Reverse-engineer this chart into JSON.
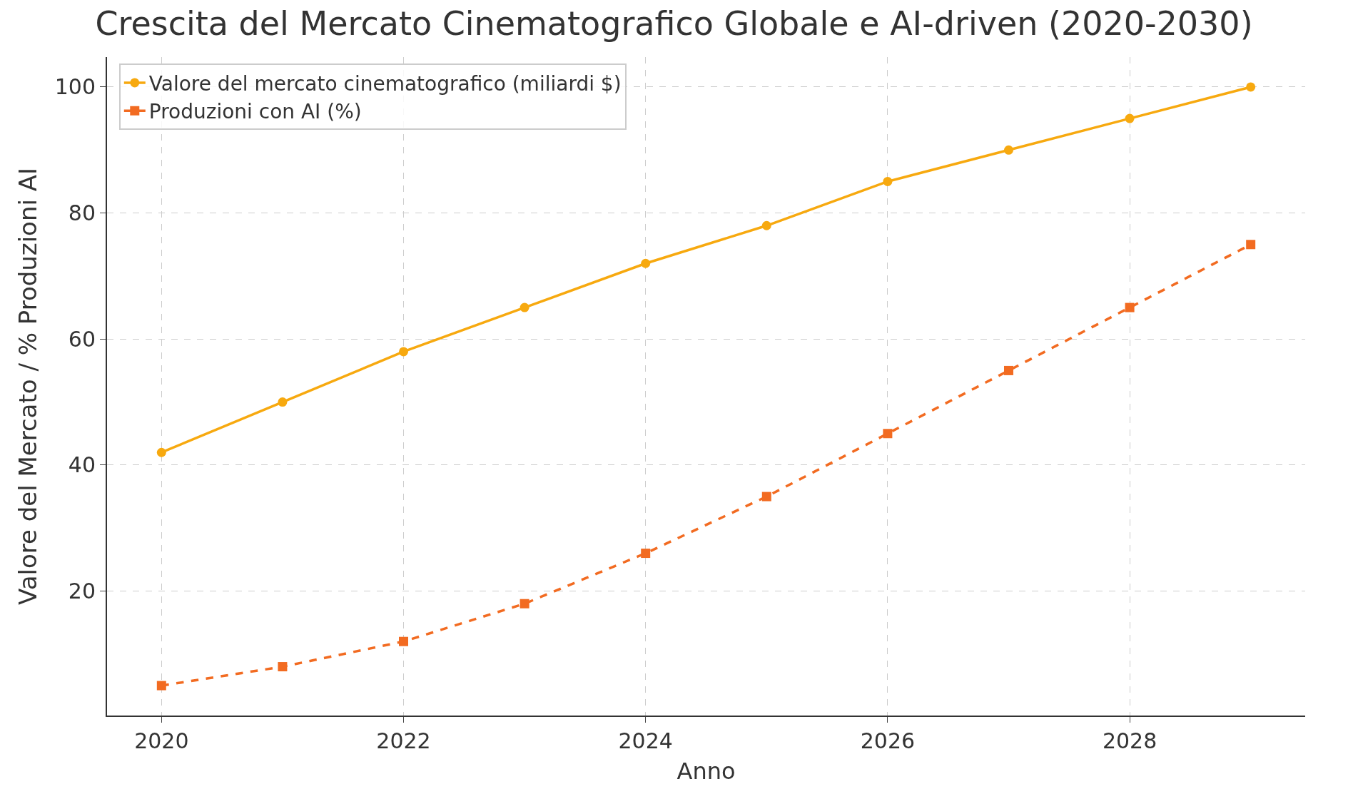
{
  "chart_data": {
    "type": "line",
    "title": "Crescita del Mercato Cinematografico Globale e AI-driven (2020-2030)",
    "xlabel": "Anno",
    "ylabel": "Valore del Mercato / % Produzioni AI",
    "x": [
      2020,
      2021,
      2022,
      2023,
      2024,
      2025,
      2026,
      2027,
      2028,
      2029
    ],
    "series": [
      {
        "name": "Valore del mercato cinematografico (miliardi $)",
        "color": "#f7a90f",
        "marker": "circle",
        "line_style": "solid",
        "values": [
          42,
          50,
          58,
          65,
          72,
          78,
          85,
          90,
          95,
          100
        ]
      },
      {
        "name": "Produzioni con AI (%)",
        "color": "#f26b21",
        "marker": "square",
        "line_style": "dashed",
        "values": [
          5,
          8,
          12,
          18,
          26,
          35,
          45,
          55,
          65,
          75
        ]
      }
    ],
    "xlim": [
      2019.55,
      2029.45
    ],
    "xticks": [
      2020,
      2022,
      2024,
      2026,
      2028
    ],
    "ylim": [
      0.25,
      104.75
    ],
    "yticks": [
      20,
      40,
      60,
      80,
      100
    ],
    "grid": true,
    "legend": "top left"
  }
}
